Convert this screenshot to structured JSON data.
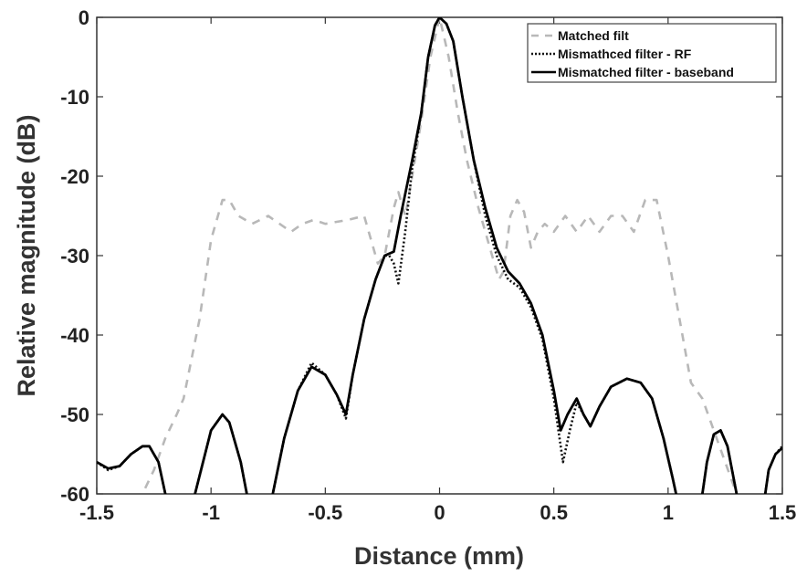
{
  "chart_data": {
    "type": "line",
    "title": "",
    "xlabel": "Distance (mm)",
    "ylabel": "Relative magnitude (dB)",
    "xlim": [
      -1.5,
      1.5
    ],
    "ylim": [
      -60,
      0
    ],
    "xticks": [
      "-1.5",
      "-1",
      "-0.5",
      "0",
      "0.5",
      "1",
      "1.5"
    ],
    "xtick_values": [
      -1.5,
      -1,
      -0.5,
      0,
      0.5,
      1,
      1.5
    ],
    "yticks": [
      "0",
      "-10",
      "-20",
      "-30",
      "-40",
      "-50",
      "-60"
    ],
    "ytick_values": [
      0,
      -10,
      -20,
      -30,
      -40,
      -50,
      -60
    ],
    "grid": false,
    "legend_position": "top-right",
    "series": [
      {
        "name": "Matched filt",
        "style": "dashed",
        "color": "#b8b8b8",
        "x": [
          -1.33,
          -1.3,
          -1.25,
          -1.2,
          -1.15,
          -1.12,
          -1.05,
          -1.0,
          -0.95,
          -0.92,
          -0.88,
          -0.82,
          -0.75,
          -0.7,
          -0.65,
          -0.6,
          -0.55,
          -0.5,
          -0.4,
          -0.33,
          -0.3,
          -0.27,
          -0.24,
          -0.2,
          -0.18,
          -0.15,
          -0.12,
          -0.08,
          -0.04,
          0,
          0.04,
          0.08,
          0.12,
          0.17,
          0.22,
          0.26,
          0.28,
          0.31,
          0.34,
          0.37,
          0.4,
          0.43,
          0.46,
          0.5,
          0.55,
          0.6,
          0.65,
          0.7,
          0.75,
          0.8,
          0.85,
          0.9,
          0.95,
          1.0,
          1.05,
          1.1,
          1.15,
          1.2,
          1.25,
          1.3,
          1.33
        ],
        "y": [
          -63,
          -60,
          -57,
          -53,
          -50,
          -48,
          -38,
          -28,
          -23,
          -23,
          -25,
          -26,
          -25,
          -26,
          -27,
          -26,
          -25.5,
          -26,
          -25.5,
          -25,
          -28,
          -31,
          -30,
          -24,
          -22,
          -25,
          -20,
          -13,
          -5,
          0,
          -5,
          -12,
          -18,
          -24,
          -29,
          -33,
          -32,
          -25,
          -23,
          -24.5,
          -29,
          -27,
          -26,
          -27,
          -25,
          -27,
          -25,
          -27,
          -25,
          -25,
          -27,
          -23,
          -23,
          -30,
          -38,
          -46,
          -48,
          -52,
          -56,
          -60,
          -63
        ]
      },
      {
        "name": "Mismathced filter - RF",
        "style": "dotted",
        "color": "#111111",
        "x": [
          -1.5,
          -1.45,
          -1.4,
          -1.35,
          -1.3,
          -1.27,
          -1.23,
          -1.2,
          -1.17,
          -1.1,
          -1.07,
          -1.0,
          -0.95,
          -0.92,
          -0.87,
          -0.83,
          -0.75,
          -0.73,
          -0.68,
          -0.62,
          -0.56,
          -0.5,
          -0.45,
          -0.41,
          -0.38,
          -0.33,
          -0.28,
          -0.24,
          -0.22,
          -0.2,
          -0.18,
          -0.15,
          -0.12,
          -0.08,
          -0.05,
          -0.02,
          0,
          0.03,
          0.06,
          0.1,
          0.15,
          0.2,
          0.25,
          0.3,
          0.35,
          0.4,
          0.45,
          0.5,
          0.52,
          0.54,
          0.57,
          0.6,
          0.63,
          0.66,
          0.7,
          0.75,
          0.82,
          0.88,
          0.93,
          0.98,
          1.02,
          1.05,
          1.14,
          1.17,
          1.2,
          1.23,
          1.26,
          1.3,
          1.33,
          1.41,
          1.44,
          1.47,
          1.5
        ],
        "y": [
          -56,
          -57,
          -56.5,
          -55,
          -54,
          -54,
          -56,
          -60,
          -64,
          -64,
          -60,
          -52,
          -50,
          -51,
          -56,
          -62,
          -64,
          -60,
          -53,
          -47,
          -43.5,
          -45,
          -47.5,
          -50.5,
          -45,
          -38,
          -33,
          -30,
          -30,
          -31,
          -33.5,
          -27,
          -19,
          -12,
          -5,
          -1,
          0,
          -0.8,
          -3,
          -10,
          -18,
          -25,
          -30,
          -33,
          -34,
          -36.5,
          -40.5,
          -48,
          -52,
          -56,
          -52,
          -48.5,
          -50,
          -51.5,
          -49,
          -46.5,
          -45.5,
          -46,
          -48,
          -53,
          -58,
          -62,
          -62,
          -56,
          -52.5,
          -52,
          -54,
          -60,
          -63,
          -63,
          -57,
          -55,
          -54
        ]
      },
      {
        "name": "Mismatched filter - baseband",
        "style": "solid",
        "color": "#000000",
        "x": [
          -1.5,
          -1.45,
          -1.4,
          -1.35,
          -1.3,
          -1.27,
          -1.23,
          -1.2,
          -1.17,
          -1.1,
          -1.07,
          -1.0,
          -0.95,
          -0.92,
          -0.87,
          -0.83,
          -0.75,
          -0.73,
          -0.68,
          -0.62,
          -0.56,
          -0.5,
          -0.45,
          -0.41,
          -0.38,
          -0.33,
          -0.28,
          -0.24,
          -0.2,
          -0.17,
          -0.12,
          -0.08,
          -0.05,
          -0.02,
          0,
          0.03,
          0.06,
          0.1,
          0.15,
          0.2,
          0.25,
          0.3,
          0.35,
          0.4,
          0.45,
          0.5,
          0.53,
          0.56,
          0.6,
          0.63,
          0.66,
          0.7,
          0.75,
          0.82,
          0.88,
          0.93,
          0.98,
          1.02,
          1.05,
          1.14,
          1.17,
          1.2,
          1.23,
          1.26,
          1.3,
          1.33,
          1.41,
          1.44,
          1.47,
          1.5
        ],
        "y": [
          -56,
          -56.8,
          -56.5,
          -55,
          -54,
          -54,
          -56,
          -60,
          -64,
          -64,
          -60,
          -52,
          -50,
          -51,
          -56,
          -62,
          -64,
          -60,
          -53,
          -47,
          -44,
          -45,
          -47.5,
          -50,
          -45,
          -38,
          -33,
          -30,
          -29.5,
          -25,
          -18,
          -12,
          -5,
          -1,
          0,
          -0.8,
          -3,
          -10,
          -18,
          -24,
          -29,
          -32,
          -33.5,
          -36,
          -40,
          -47,
          -52,
          -50,
          -48,
          -50,
          -51.5,
          -49,
          -46.5,
          -45.5,
          -46,
          -48,
          -53,
          -58,
          -62,
          -62,
          -56,
          -52.5,
          -52,
          -54,
          -60,
          -63,
          -63,
          -57,
          -55,
          -54.2
        ]
      }
    ]
  }
}
